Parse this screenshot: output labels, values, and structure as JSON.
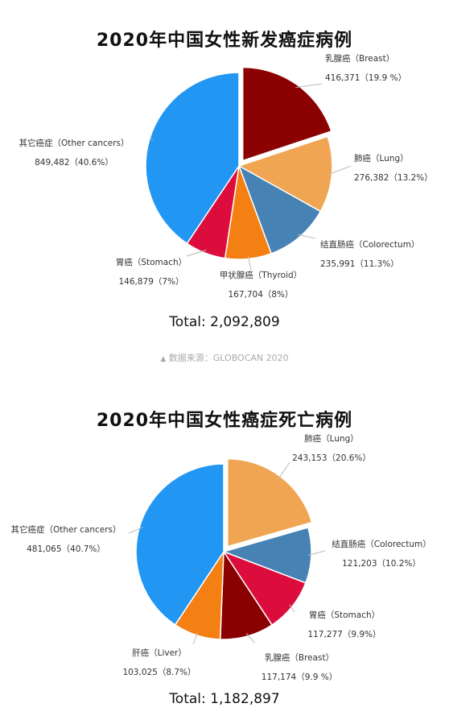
{
  "source_note": "数据来源：GLOBOCAN 2020",
  "source_icon": "triangle-up-icon",
  "chart_data": [
    {
      "type": "pie",
      "title": "2020年中国女性新发癌症病例",
      "total_label": "Total: 2,092,809",
      "slices": [
        {
          "name": "乳腺癌（Breast）",
          "value": 416371,
          "value_label": "416,371（19.9 %）",
          "percent": 19.9,
          "color": "#8b0000",
          "exploded": true
        },
        {
          "name": "肺癌（Lung）",
          "value": 276382,
          "value_label": "276,382（13.2%）",
          "percent": 13.2,
          "color": "#f0a552"
        },
        {
          "name": "结直肠癌（Colorectum）",
          "value": 235991,
          "value_label": "235,991（11.3%）",
          "percent": 11.3,
          "color": "#4682b4"
        },
        {
          "name": "甲状腺癌（Thyroid）",
          "value": 167704,
          "value_label": "167,704（8%）",
          "percent": 8,
          "color": "#f47f12"
        },
        {
          "name": "胃癌（Stomach）",
          "value": 146879,
          "value_label": "146,879（7%）",
          "percent": 7,
          "color": "#dc0d3c"
        },
        {
          "name": "其它癌症（Other cancers）",
          "value": 849482,
          "value_label": "849,482（40.6%）",
          "percent": 40.6,
          "color": "#2196f3"
        }
      ]
    },
    {
      "type": "pie",
      "title": "2020年中国女性癌症死亡病例",
      "total_label": "Total: 1,182,897",
      "slices": [
        {
          "name": "肺癌（Lung）",
          "value": 243153,
          "value_label": "243,153（20.6%）",
          "percent": 20.6,
          "color": "#f0a552",
          "exploded": true
        },
        {
          "name": "结直肠癌（Colorectum）",
          "value": 121203,
          "value_label": "121,203（10.2%）",
          "percent": 10.2,
          "color": "#4682b4"
        },
        {
          "name": "胃癌（Stomach）",
          "value": 117277,
          "value_label": "117,277（9.9%）",
          "percent": 9.9,
          "color": "#dc0d3c"
        },
        {
          "name": "乳腺癌（Breast）",
          "value": 117174,
          "value_label": "117,174（9.9 %）",
          "percent": 9.9,
          "color": "#8b0000"
        },
        {
          "name": "肝癌（Liver）",
          "value": 103025,
          "value_label": "103,025（8.7%）",
          "percent": 8.7,
          "color": "#f47f12"
        },
        {
          "name": "其它癌症（Other cancers）",
          "value": 481065,
          "value_label": "481,065（40.7%）",
          "percent": 40.7,
          "color": "#2196f3"
        }
      ]
    }
  ]
}
